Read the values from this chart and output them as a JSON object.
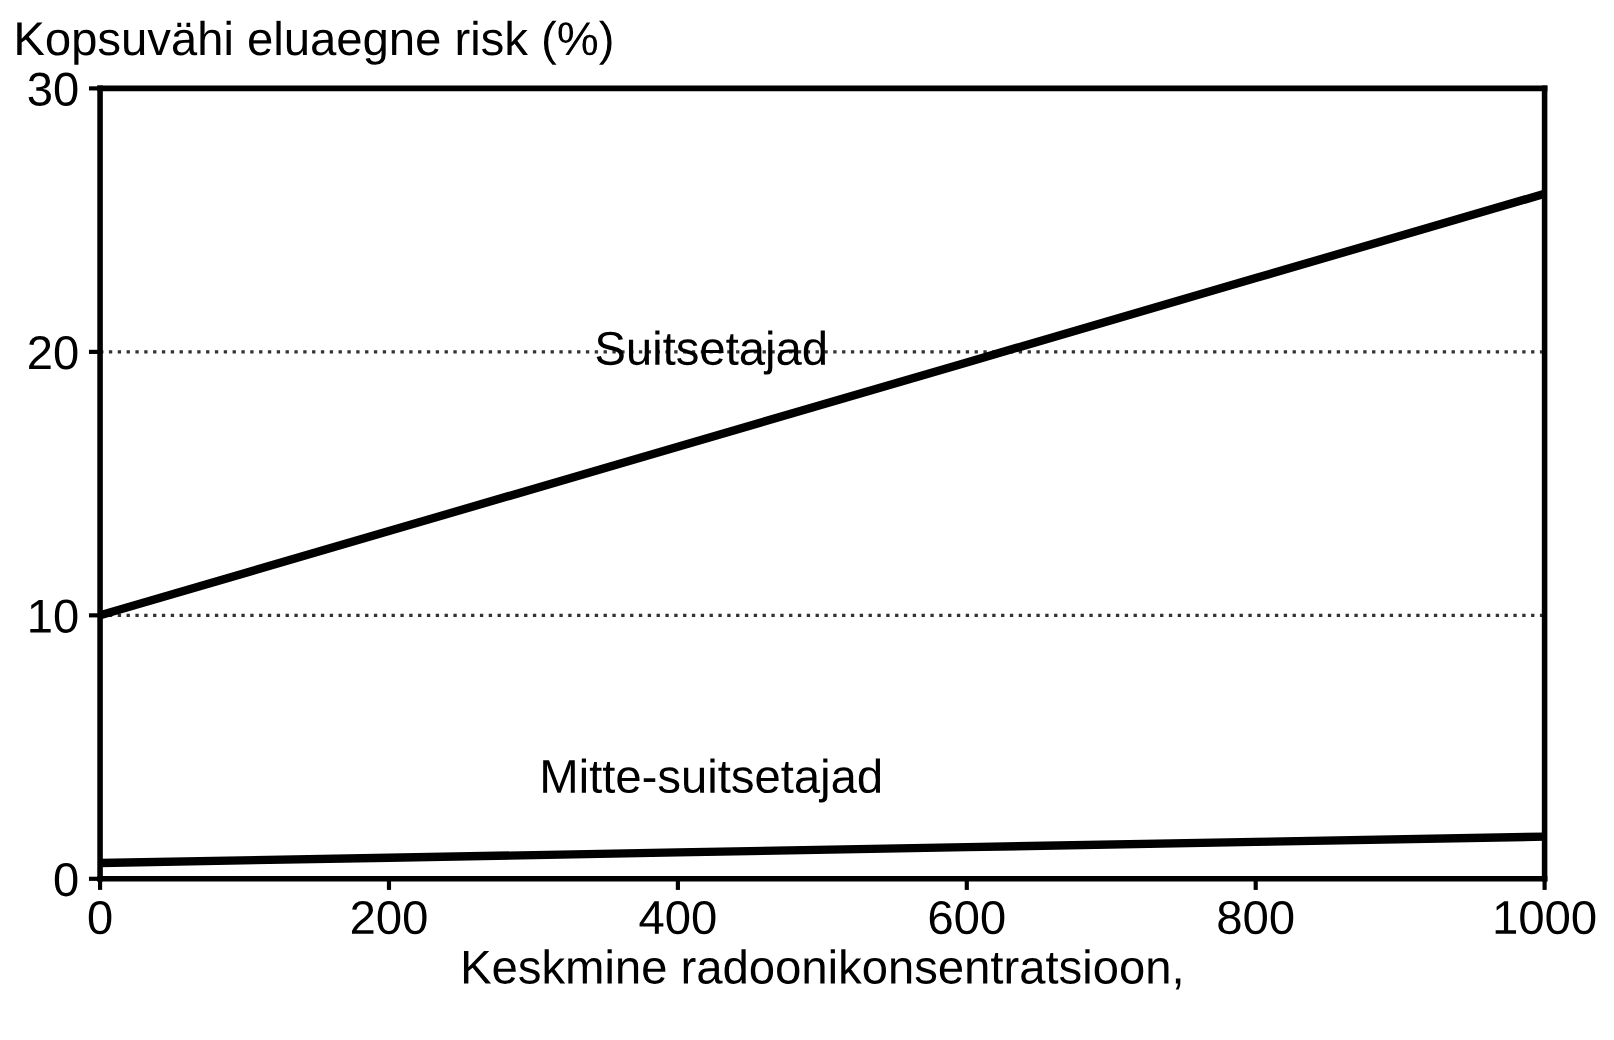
{
  "chart_data": {
    "type": "line",
    "ylabel": "Kopsuvähi eluaegne risk (%)",
    "xlabel": "Keskmine radoonikonsentratsioon,",
    "series": [
      {
        "name": "Suitsetajad",
        "color": "#000000",
        "x": [
          0,
          200,
          400,
          600,
          800,
          1000
        ],
        "values": [
          10,
          13.2,
          16.4,
          19.6,
          22.8,
          26
        ]
      },
      {
        "name": "Mitte-suitsetajad",
        "color": "#000000",
        "x": [
          0,
          200,
          400,
          600,
          800,
          1000
        ],
        "values": [
          0.6,
          0.8,
          1.0,
          1.2,
          1.4,
          1.6
        ]
      }
    ],
    "xlim": [
      0,
      1000
    ],
    "xticks": [
      0,
      200,
      400,
      600,
      800,
      1000
    ],
    "ylim": [
      0,
      30
    ],
    "yticks": [
      0,
      10,
      20,
      30
    ],
    "grid": "y",
    "legend": false
  }
}
